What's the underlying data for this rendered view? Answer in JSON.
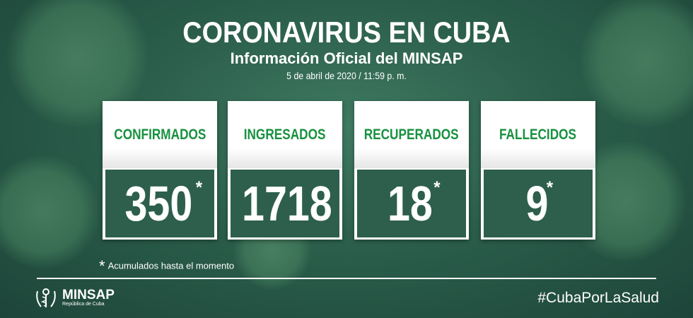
{
  "header": {
    "title": "CORONAVIRUS EN CUBA",
    "subtitle": "Información Oficial del MINSAP",
    "date": "5 de abril de 2020 / 11:59 p. m."
  },
  "stats": [
    {
      "label": "CONFIRMADOS",
      "value": "350",
      "asterisk": "*"
    },
    {
      "label": "INGRESADOS",
      "value": "1718",
      "asterisk": ""
    },
    {
      "label": "RECUPERADOS",
      "value": "18",
      "asterisk": "*"
    },
    {
      "label": "FALLECIDOS",
      "value": "9",
      "asterisk": "*"
    }
  ],
  "footnote": {
    "symbol": "*",
    "text": "Acumulados hasta el momento"
  },
  "footer": {
    "logo_name": "MINSAP",
    "logo_sub": "República de Cuba",
    "hashtag": "#CubaPorLaSalud"
  },
  "colors": {
    "label_green": "#17913f",
    "background": "#2b5e4b"
  }
}
